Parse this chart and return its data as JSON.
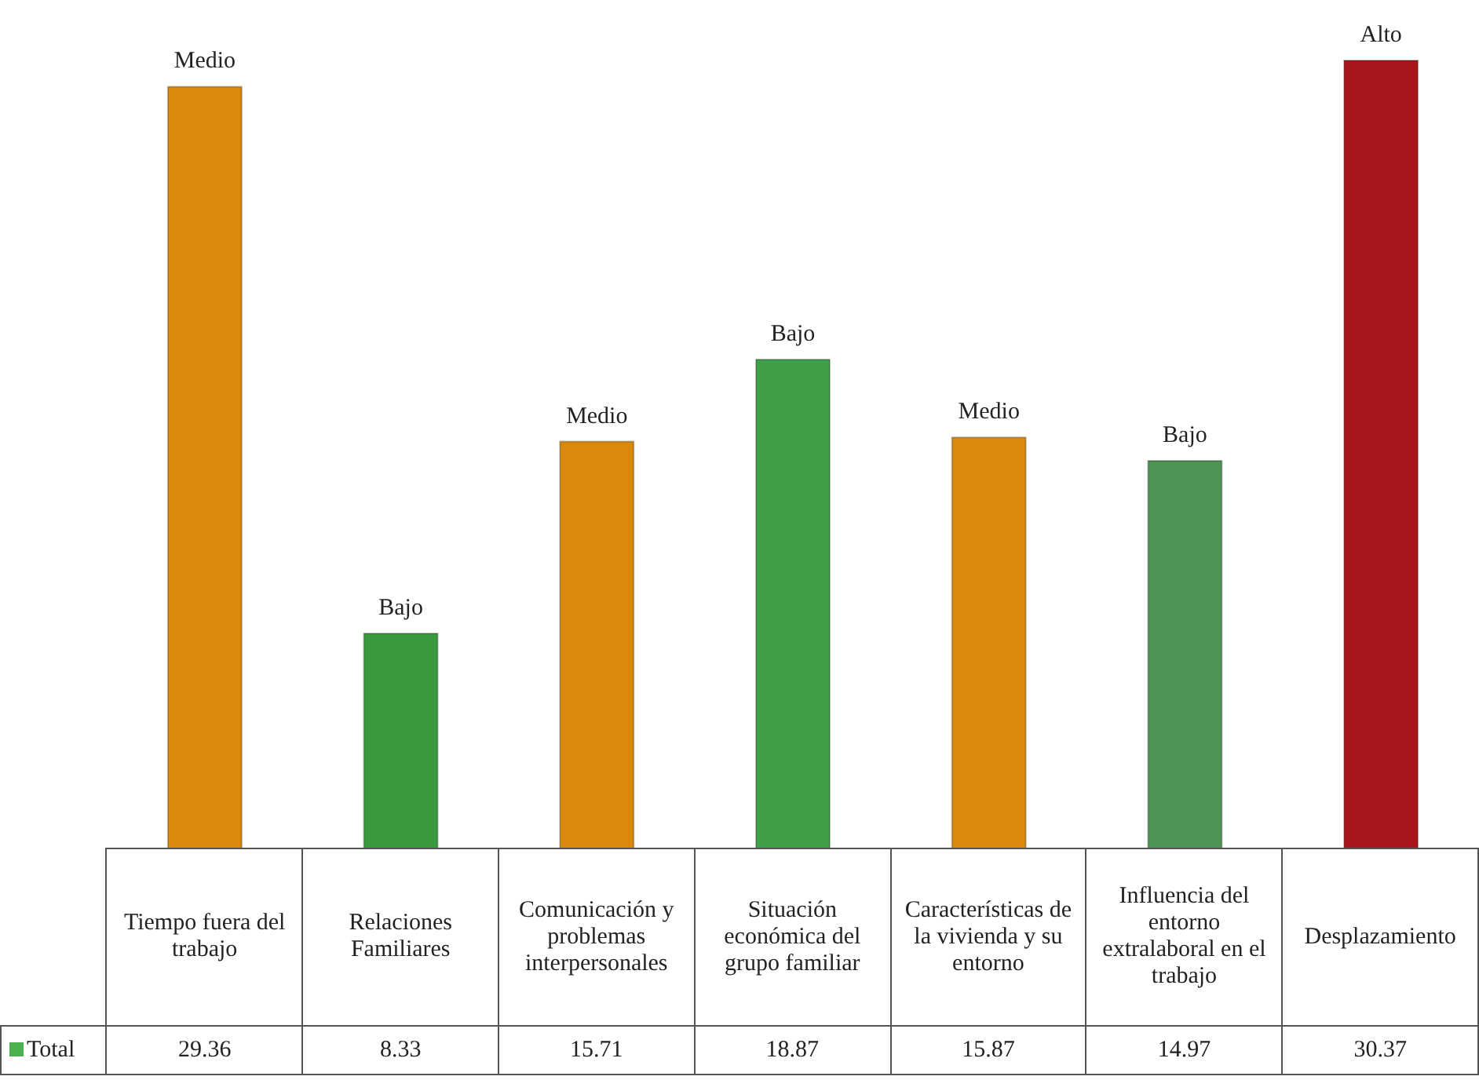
{
  "chart_data": {
    "type": "bar",
    "categories": [
      "Tiempo fuera del trabajo",
      "Relaciones Familiares",
      "Comunicación y problemas interpersonales",
      "Situación económica del grupo familiar",
      "Características de la vivienda y su entorno",
      "Influencia del entorno extralaboral en el trabajo",
      "Desplazamiento"
    ],
    "series": [
      {
        "name": "Total",
        "color": "#4caf50",
        "values": [
          29.36,
          8.33,
          15.71,
          18.87,
          15.87,
          14.97,
          30.37
        ],
        "colors": [
          "#d98a0c",
          "#3a9a3e",
          "#d98a0c",
          "#3fa048",
          "#d98a0c",
          "#4e9455",
          "#a8151a"
        ]
      }
    ],
    "annotations": [
      {
        "text": "Medio",
        "x": "Tiempo fuera del trabajo",
        "y": 29.36
      },
      {
        "text": "Bajo",
        "x": "Relaciones Familiares",
        "y": 8.33
      },
      {
        "text": "Medio",
        "x": "Comunicación y problemas interpersonales",
        "y": 15.71
      },
      {
        "text": "Bajo",
        "x": "Situación económica del grupo familiar",
        "y": 18.87
      },
      {
        "text": "Medio",
        "x": "Características de la vivienda y su entorno",
        "y": 15.87
      },
      {
        "text": "Bajo",
        "x": "Influencia del entorno extralaboral en el trabajo",
        "y": 14.97
      },
      {
        "text": "Alto",
        "x": "Desplazamiento",
        "y": 30.37
      }
    ],
    "data_labels": true,
    "legend": "bottom left"
  }
}
